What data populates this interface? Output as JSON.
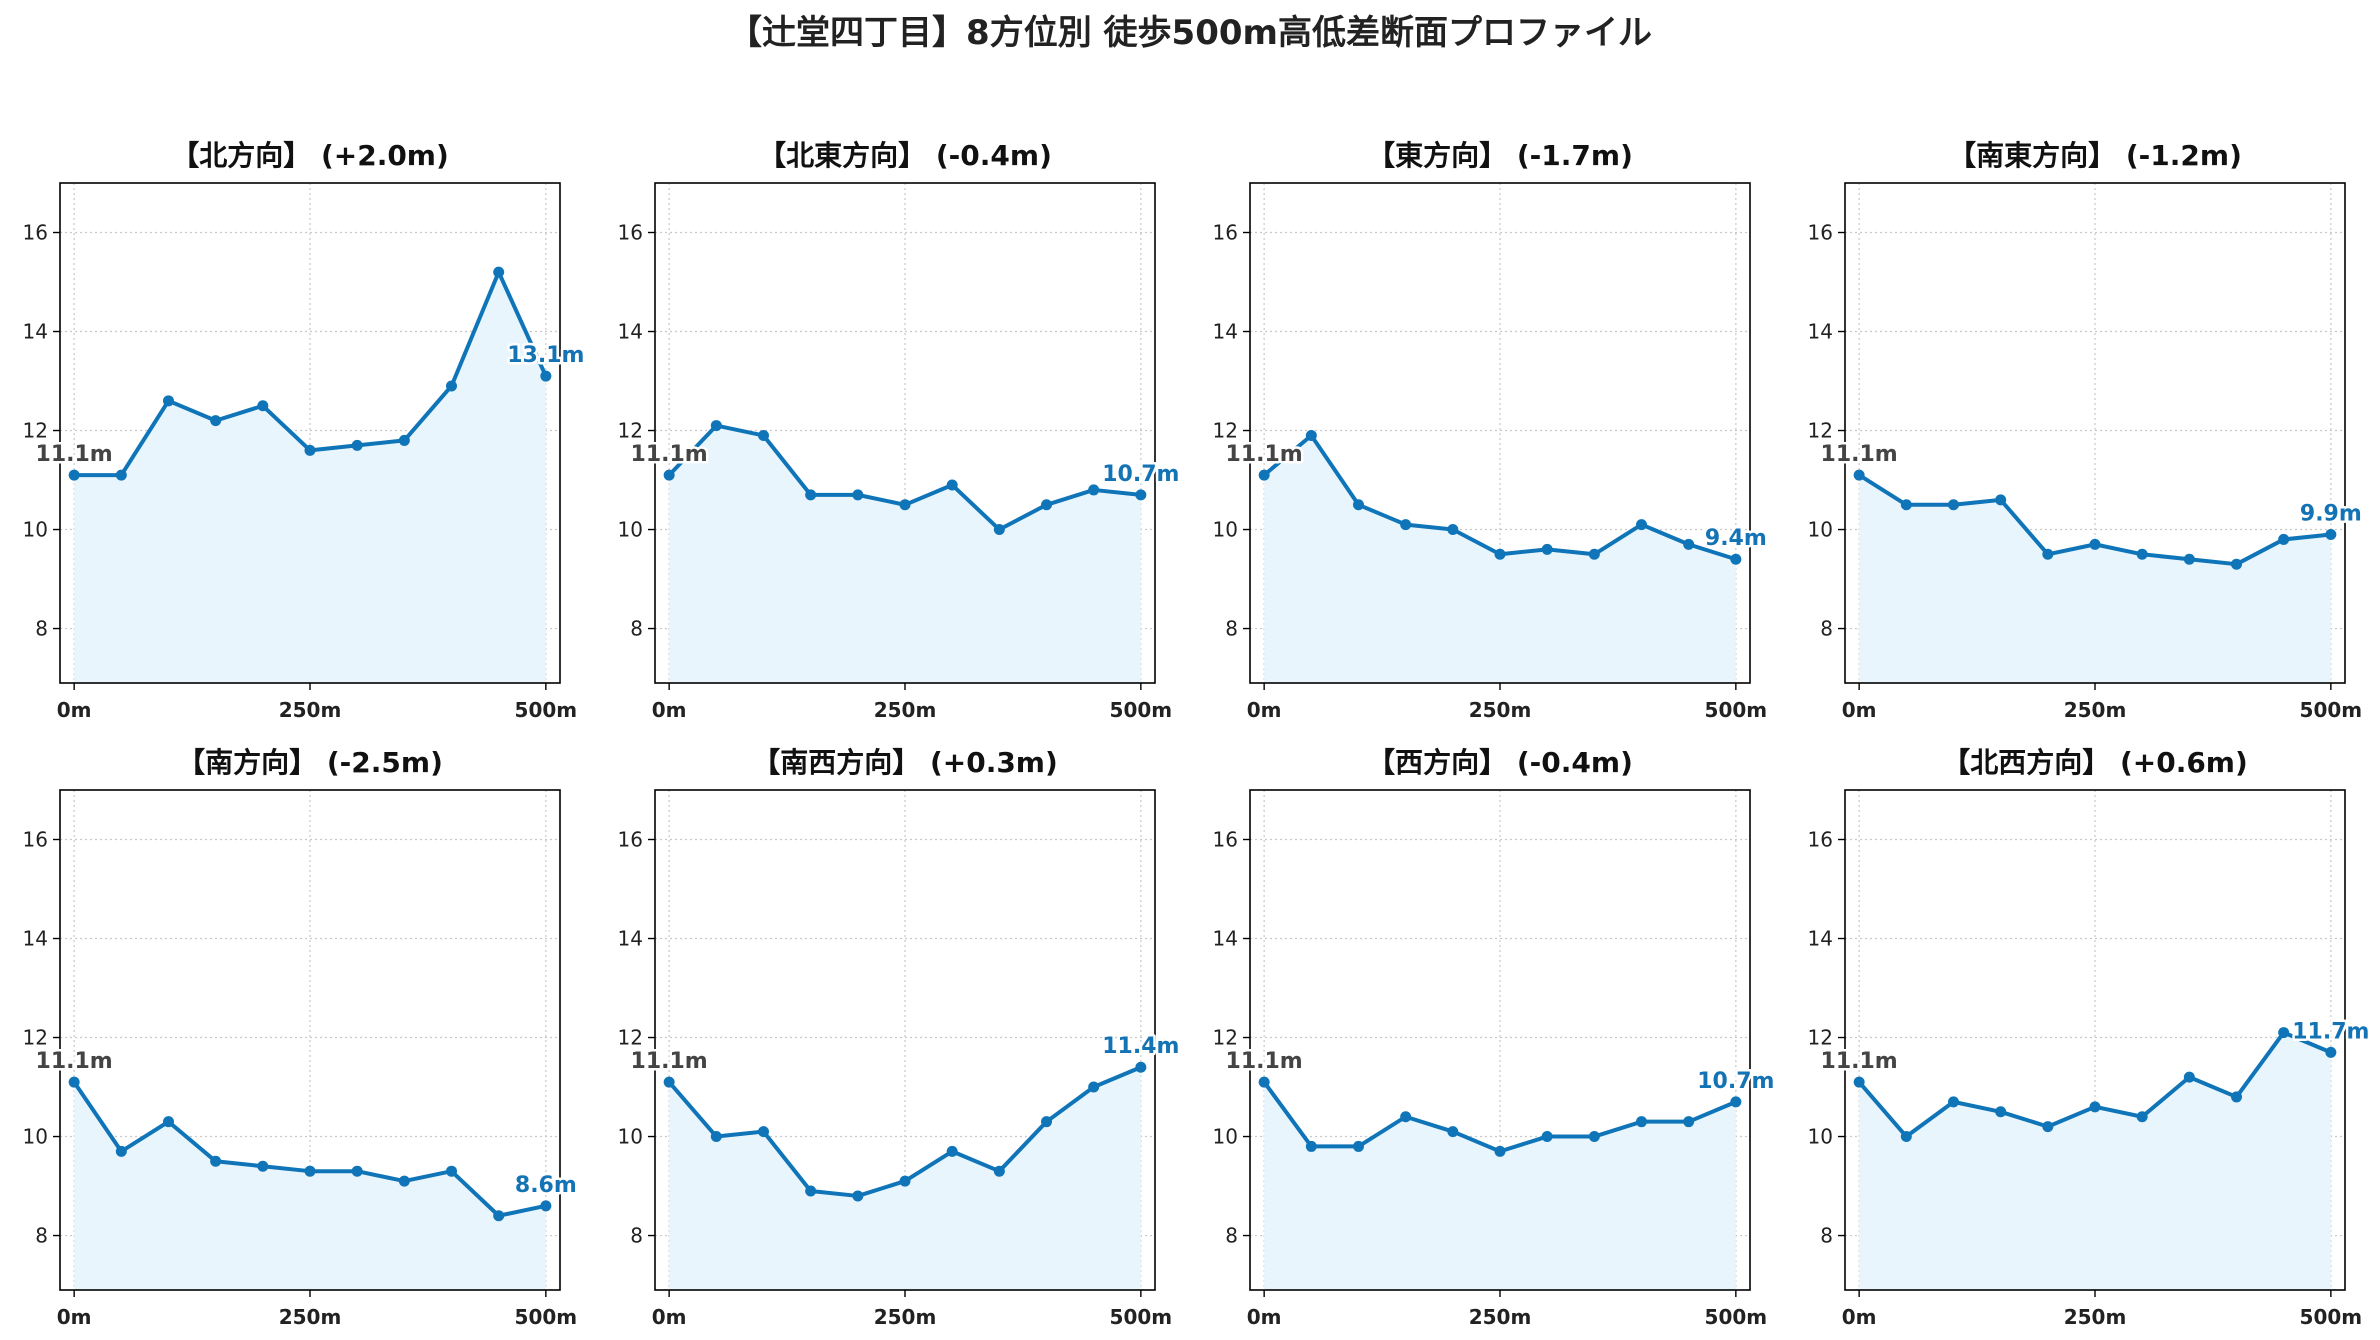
{
  "colors": {
    "line": "#0f75b8",
    "fill": "#e8f5fc",
    "grid": "#c8c8c8",
    "axis": "#000000",
    "start_label": "#444444",
    "end_label": "#1473b5"
  },
  "chart_data": {
    "type": "line",
    "suptitle": "【辻堂四丁目】8方位別 徒歩500m高低差断面プロファイル",
    "x": [
      0,
      50,
      100,
      150,
      200,
      250,
      300,
      350,
      400,
      450,
      500
    ],
    "xticks": [
      0,
      250,
      500
    ],
    "xtick_labels": [
      "0m",
      "250m",
      "500m"
    ],
    "xlim": [
      -15,
      515
    ],
    "ylim": [
      6.9,
      17.0
    ],
    "yticks": [
      8,
      10,
      12,
      14,
      16
    ],
    "grid": true,
    "panels": [
      {
        "title": "【北方向】 (+2.0m)",
        "values": [
          11.1,
          11.1,
          12.6,
          12.2,
          12.5,
          11.6,
          11.7,
          11.8,
          12.9,
          15.2,
          13.1
        ],
        "start_label": "11.1m",
        "end_label": "13.1m"
      },
      {
        "title": "【北東方向】 (-0.4m)",
        "values": [
          11.1,
          12.1,
          11.9,
          10.7,
          10.7,
          10.5,
          10.9,
          10.0,
          10.5,
          10.8,
          10.7
        ],
        "start_label": "11.1m",
        "end_label": "10.7m"
      },
      {
        "title": "【東方向】 (-1.7m)",
        "values": [
          11.1,
          11.9,
          10.5,
          10.1,
          10.0,
          9.5,
          9.6,
          9.5,
          10.1,
          9.7,
          9.4
        ],
        "start_label": "11.1m",
        "end_label": "9.4m"
      },
      {
        "title": "【南東方向】 (-1.2m)",
        "values": [
          11.1,
          10.5,
          10.5,
          10.6,
          9.5,
          9.7,
          9.5,
          9.4,
          9.3,
          9.8,
          9.9
        ],
        "start_label": "11.1m",
        "end_label": "9.9m"
      },
      {
        "title": "【南方向】 (-2.5m)",
        "values": [
          11.1,
          9.7,
          10.3,
          9.5,
          9.4,
          9.3,
          9.3,
          9.1,
          9.3,
          8.4,
          8.6
        ],
        "start_label": "11.1m",
        "end_label": "8.6m"
      },
      {
        "title": "【南西方向】 (+0.3m)",
        "values": [
          11.1,
          10.0,
          10.1,
          8.9,
          8.8,
          9.1,
          9.7,
          9.3,
          10.3,
          11.0,
          11.4
        ],
        "start_label": "11.1m",
        "end_label": "11.4m"
      },
      {
        "title": "【西方向】 (-0.4m)",
        "values": [
          11.1,
          9.8,
          9.8,
          10.4,
          10.1,
          9.7,
          10.0,
          10.0,
          10.3,
          10.3,
          10.7
        ],
        "start_label": "11.1m",
        "end_label": "10.7m"
      },
      {
        "title": "【北西方向】 (+0.6m)",
        "values": [
          11.1,
          10.0,
          10.7,
          10.5,
          10.2,
          10.6,
          10.4,
          11.2,
          10.8,
          12.1,
          11.7
        ],
        "start_label": "11.1m",
        "end_label": "11.7m"
      }
    ]
  }
}
